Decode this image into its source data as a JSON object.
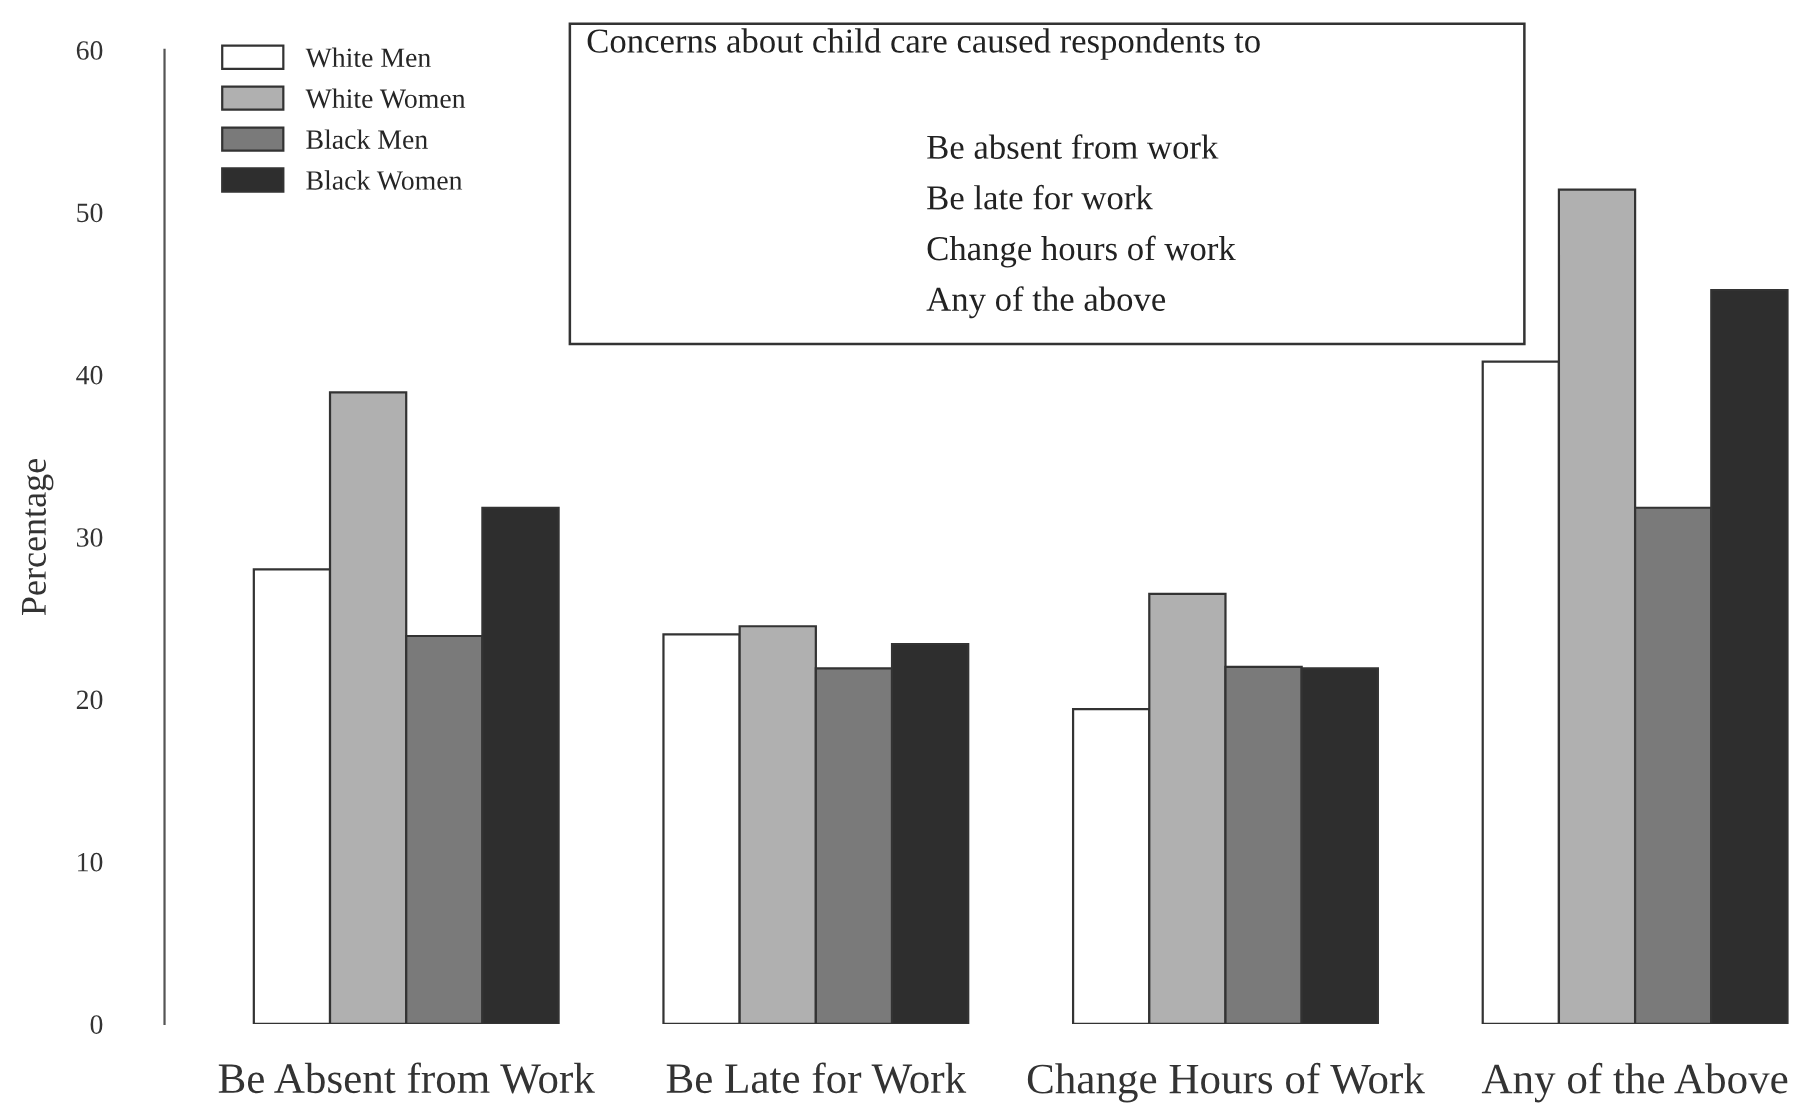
{
  "chart_data": {
    "type": "bar",
    "ylabel": "Percentage",
    "categories": [
      "Be Absent from Work",
      "Be Late for Work",
      "Change Hours of Work",
      "Any of the Above"
    ],
    "series": [
      {
        "name": "White Men",
        "color": "#ffffff",
        "values": [
          28.0,
          24.0,
          19.4,
          40.8
        ]
      },
      {
        "name": "White Women",
        "color": "#b0b0b0",
        "values": [
          38.9,
          24.5,
          26.5,
          51.4
        ]
      },
      {
        "name": "Black Men",
        "color": "#7a7a7a",
        "values": [
          23.9,
          21.9,
          22.0,
          31.8
        ]
      },
      {
        "name": "Black Women",
        "color": "#2e2e2e",
        "values": [
          31.8,
          23.4,
          21.9,
          45.2
        ]
      }
    ],
    "ylim": [
      0,
      60
    ],
    "yticks": [
      0,
      10,
      20,
      30,
      40,
      50,
      60
    ],
    "grid": false,
    "legend": "top left",
    "annotations": [
      "Concerns about child care caused respondents to",
      "Be absent from work",
      "Be late for work",
      "Change hours of work",
      "Any of the above"
    ]
  }
}
